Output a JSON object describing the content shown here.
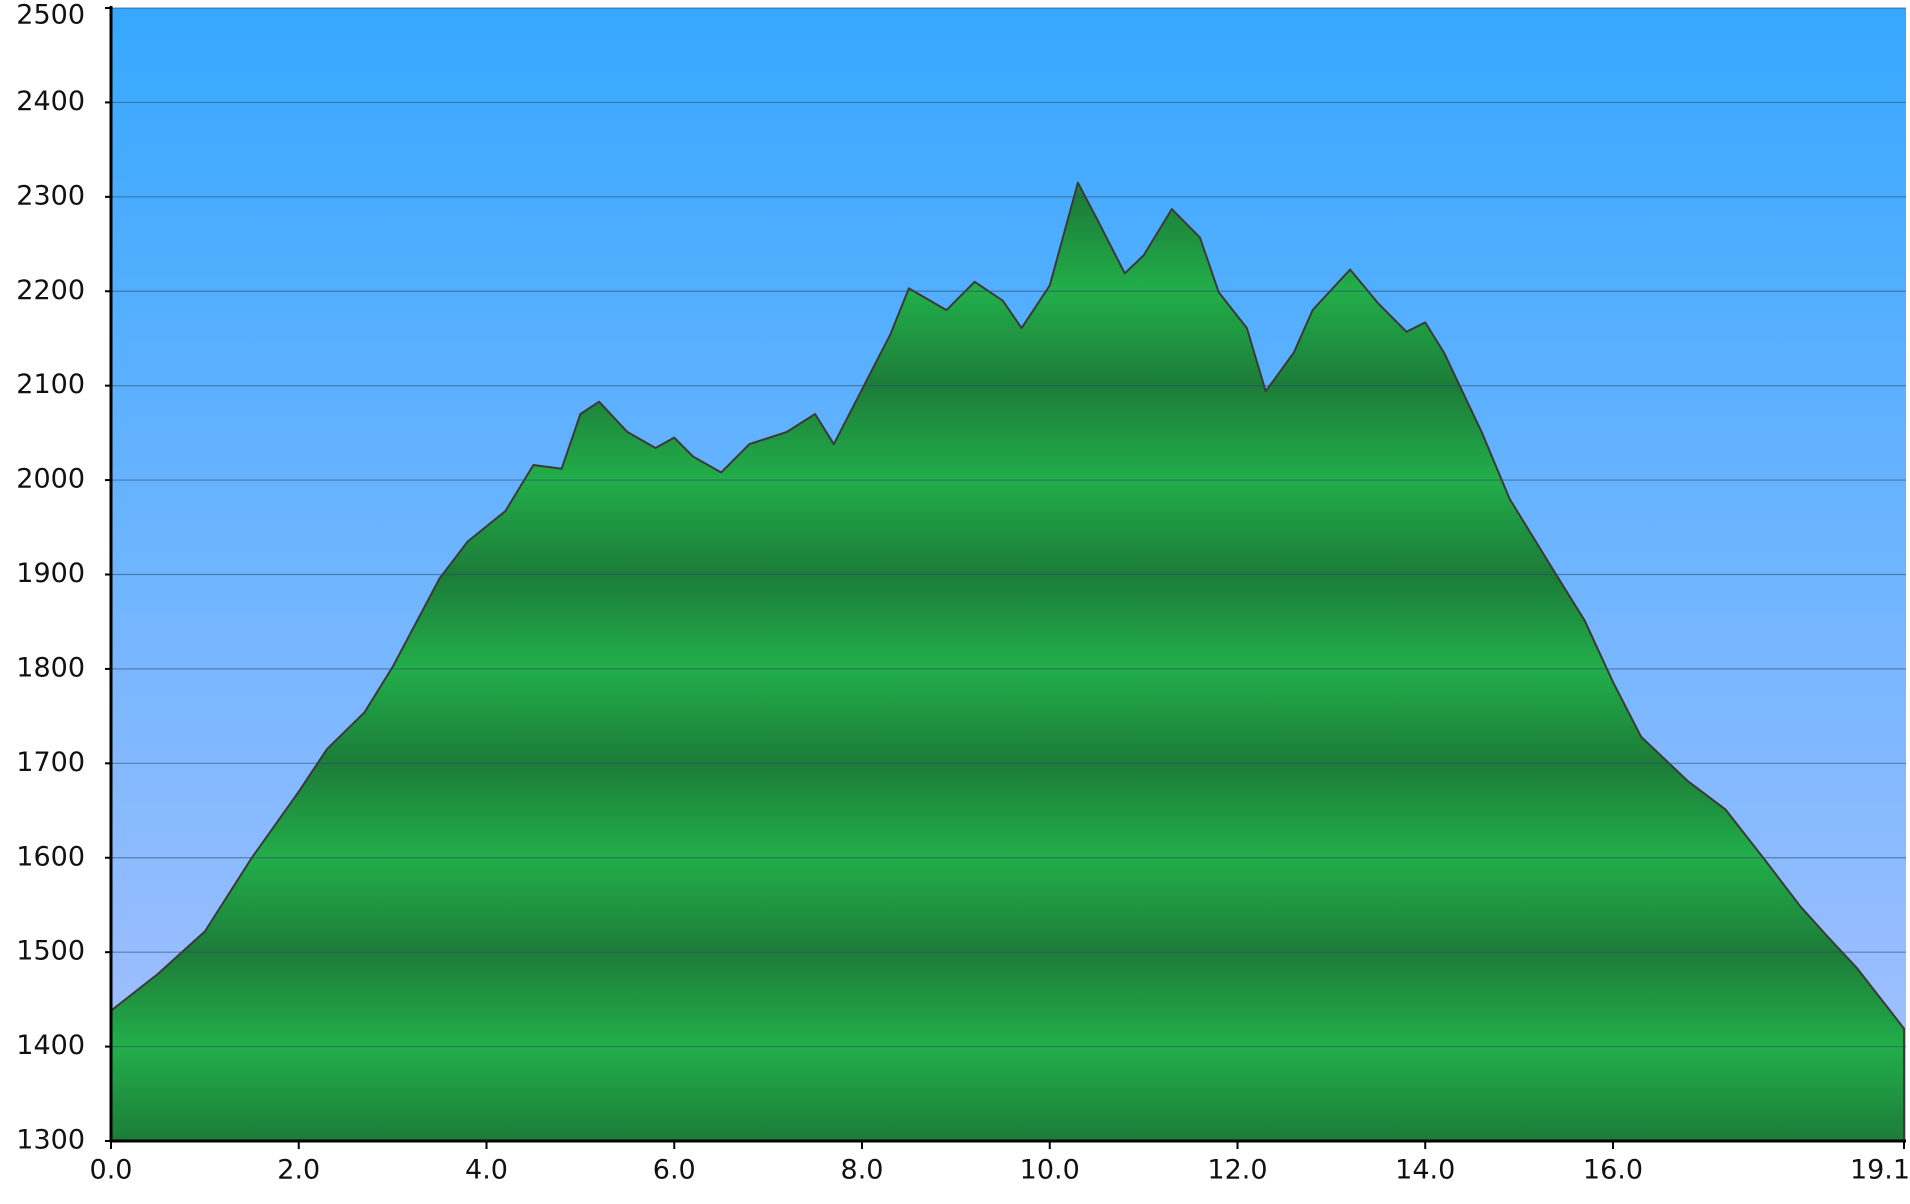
{
  "chart_data": {
    "type": "area",
    "x": [
      0,
      0.5,
      1.0,
      1.5,
      2.0,
      2.3,
      2.7,
      3.0,
      3.5,
      3.8,
      4.2,
      4.5,
      4.8,
      5.0,
      5.2,
      5.5,
      5.8,
      6.0,
      6.2,
      6.5,
      6.8,
      7.2,
      7.5,
      7.7,
      8.0,
      8.3,
      8.5,
      8.9,
      9.2,
      9.5,
      9.7,
      10.0,
      10.3,
      10.5,
      10.8,
      11.0,
      11.3,
      11.6,
      11.8,
      12.1,
      12.3,
      12.6,
      12.8,
      13.2,
      13.5,
      13.8,
      14.0,
      14.2,
      14.6,
      14.9,
      15.3,
      15.7,
      16.0,
      16.3,
      16.8,
      17.2,
      17.6,
      18.0,
      18.3,
      18.6,
      19.1
    ],
    "series": [
      {
        "color": "#22a84a",
        "values": [
          1438,
          1477,
          1522,
          1600,
          1670,
          1715,
          1754,
          1802,
          1896,
          1935,
          1967,
          2016,
          2012,
          2070,
          2083,
          2051,
          2034,
          2045,
          2025,
          2008,
          2038,
          2051,
          2070,
          2038,
          2096,
          2154,
          2203,
          2180,
          2210,
          2190,
          2161,
          2206,
          2315,
          2277,
          2219,
          2238,
          2287,
          2257,
          2199,
          2161,
          2094,
          2135,
          2180,
          2223,
          2187,
          2157,
          2167,
          2135,
          2051,
          1980,
          1915,
          1851,
          1786,
          1728,
          1681,
          1651,
          1600,
          1548,
          1515,
          1483,
          1419
        ]
      }
    ],
    "xlim": [
      0,
      19.1
    ],
    "xticks": [
      {
        "value": 0,
        "label": "0.0"
      },
      {
        "value": 2,
        "label": "2.0"
      },
      {
        "value": 4,
        "label": "4.0"
      },
      {
        "value": 6,
        "label": "6.0"
      },
      {
        "value": 8,
        "label": "8.0"
      },
      {
        "value": 10,
        "label": "10.0"
      },
      {
        "value": 12,
        "label": "12.0"
      },
      {
        "value": 14,
        "label": "14.0"
      },
      {
        "value": 16,
        "label": "16.0"
      },
      {
        "value": 19.1,
        "label": "19.1"
      }
    ],
    "ylim": [
      1300,
      2500
    ],
    "yticks": [
      1300,
      1400,
      1500,
      1600,
      1700,
      1800,
      1900,
      2000,
      2100,
      2200,
      2300,
      2400,
      2500
    ],
    "grid": true
  }
}
